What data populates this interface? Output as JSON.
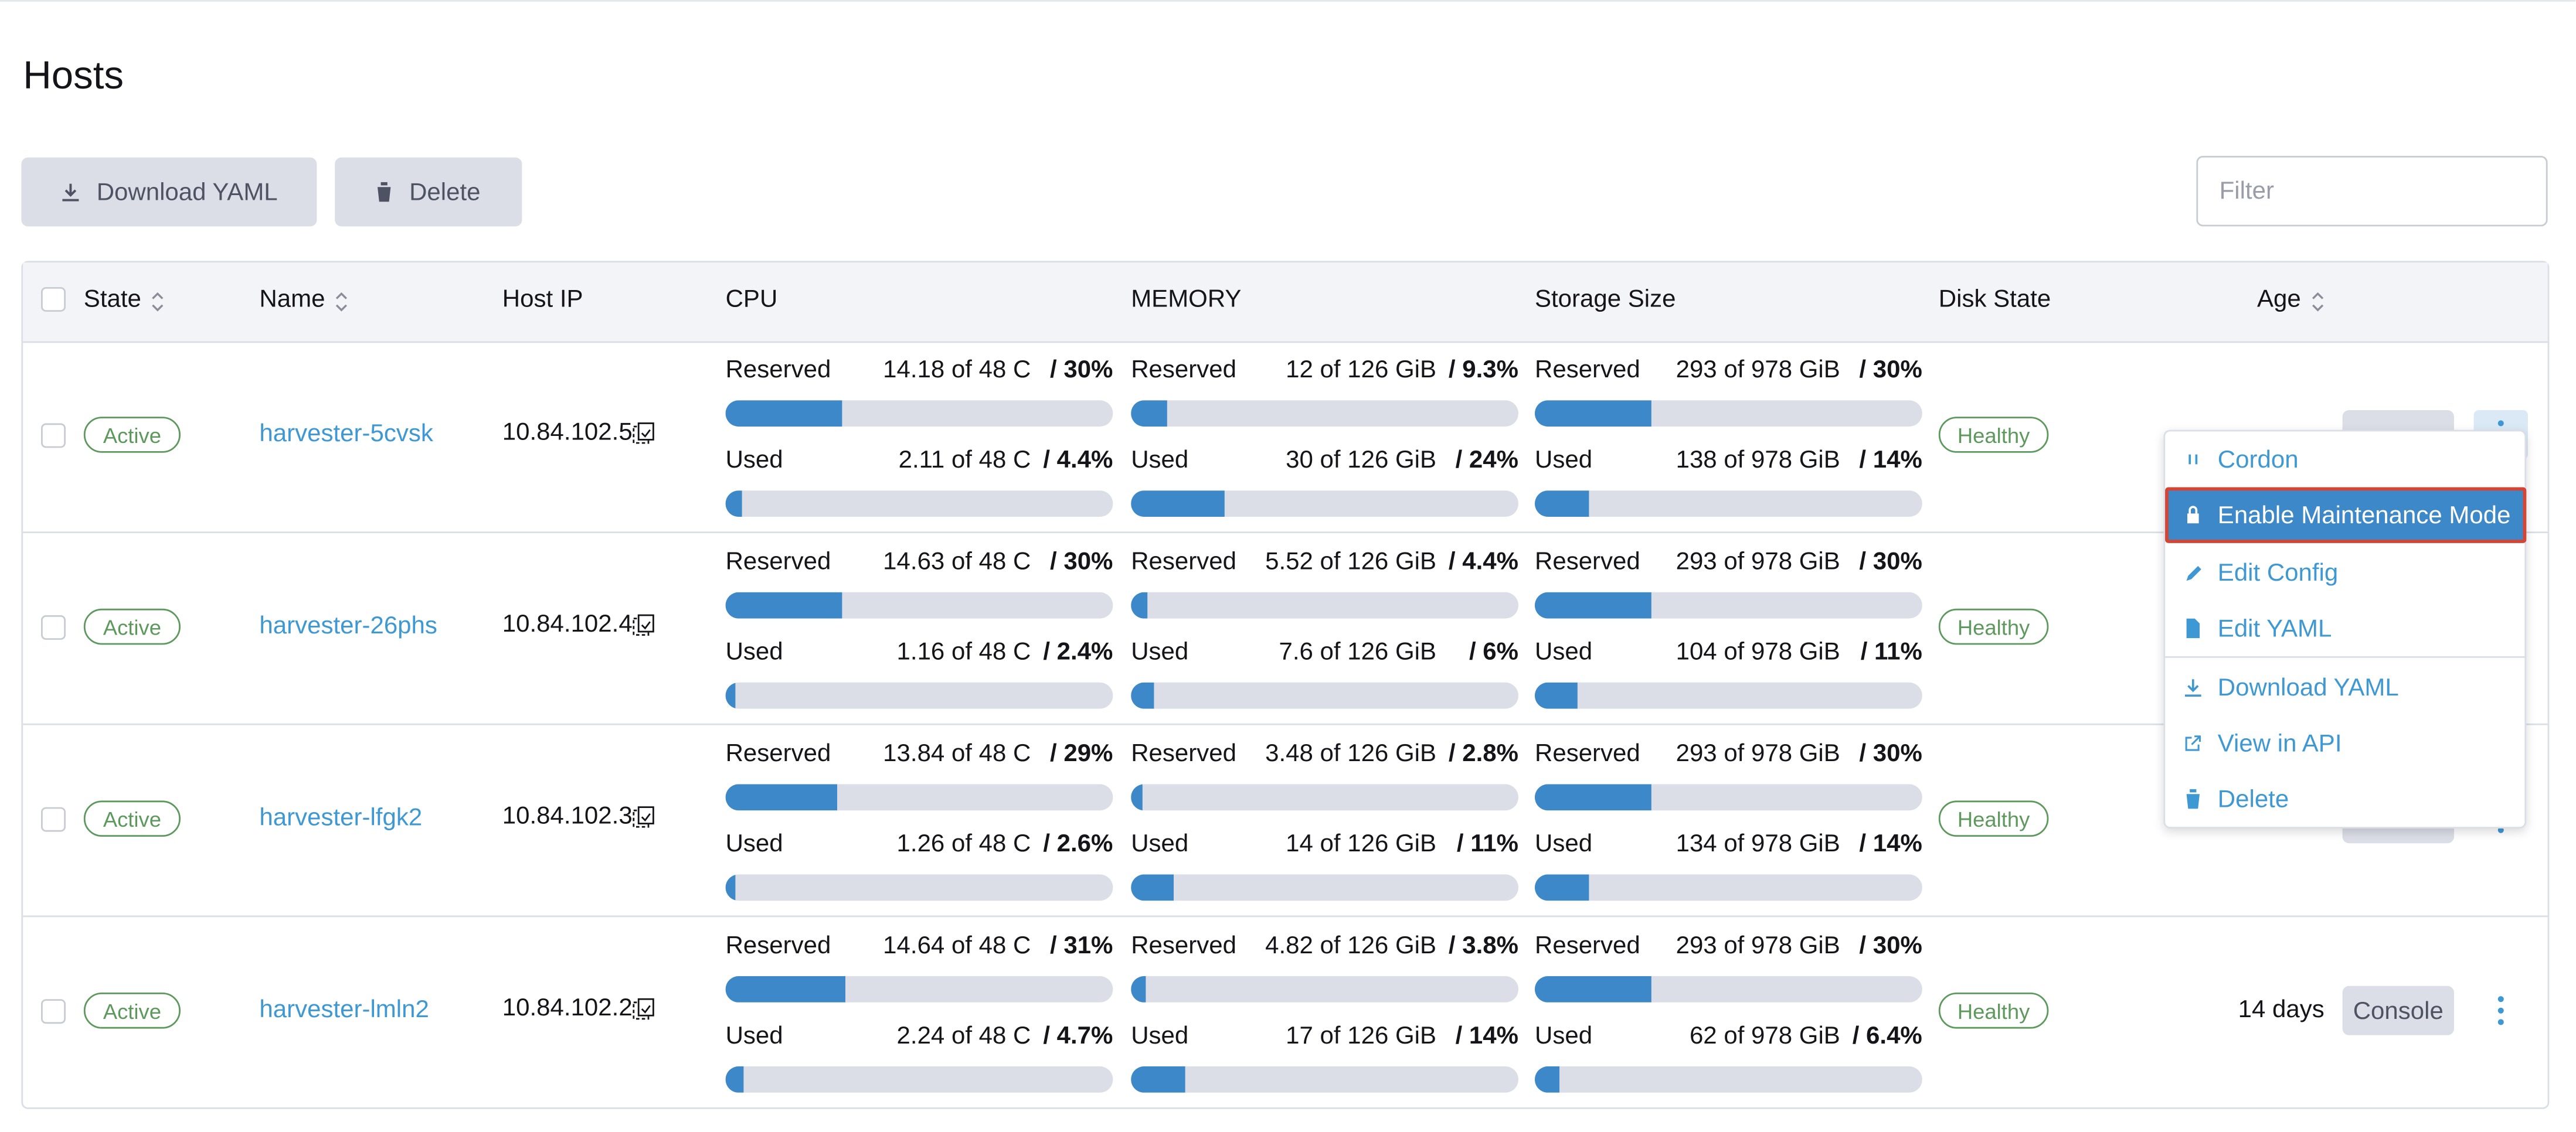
{
  "header": {
    "title": "Hosts"
  },
  "toolbar": {
    "buttons": [
      "Download YAML",
      "Delete"
    ],
    "filter_placeholder": "Filter"
  },
  "table": {
    "columns": [
      "State",
      "Name",
      "Host IP",
      "CPU",
      "MEMORY",
      "Storage Size",
      "Disk State",
      "Age"
    ],
    "rows": [
      {
        "state": "Active",
        "name": "harvester-5cvsk",
        "ip": "10.84.102.5",
        "cpu": {
          "reserved": {
            "label": "Reserved",
            "amount": "14.18 of 48 C",
            "percent": {
              "value": 30,
              "label": "/ 30%"
            }
          },
          "used": {
            "label": "Used",
            "amount": "2.11 of 48 C",
            "percent": {
              "value": 4.4,
              "label": "/ 4.4%"
            }
          }
        },
        "memory": {
          "reserved": {
            "label": "Reserved",
            "amount": "12 of 126 GiB",
            "percent": {
              "value": 9.3,
              "label": "/ 9.3%"
            }
          },
          "used": {
            "label": "Used",
            "amount": "30 of 126 GiB",
            "percent": {
              "value": 24,
              "label": "/ 24%"
            }
          }
        },
        "storage": {
          "reserved": {
            "label": "Reserved",
            "amount": "293 of 978 GiB",
            "percent": {
              "value": 30,
              "label": "/ 30%"
            }
          },
          "used": {
            "label": "Used",
            "amount": "138 of 978 GiB",
            "percent": {
              "value": 14,
              "label": "/ 14%"
            }
          }
        },
        "disk": "Healthy"
      },
      {
        "state": "Active",
        "name": "harvester-26phs",
        "ip": "10.84.102.4",
        "cpu": {
          "reserved": {
            "label": "Reserved",
            "amount": "14.63 of 48 C",
            "percent": {
              "value": 30,
              "label": "/ 30%"
            }
          },
          "used": {
            "label": "Used",
            "amount": "1.16 of 48 C",
            "percent": {
              "value": 2.4,
              "label": "/ 2.4%"
            }
          }
        },
        "memory": {
          "reserved": {
            "label": "Reserved",
            "amount": "5.52 of 126 GiB",
            "percent": {
              "value": 4.4,
              "label": "/ 4.4%"
            }
          },
          "used": {
            "label": "Used",
            "amount": "7.6 of 126 GiB",
            "percent": {
              "value": 6,
              "label": "/ 6%"
            }
          }
        },
        "storage": {
          "reserved": {
            "label": "Reserved",
            "amount": "293 of 978 GiB",
            "percent": {
              "value": 30,
              "label": "/ 30%"
            }
          },
          "used": {
            "label": "Used",
            "amount": "104 of 978 GiB",
            "percent": {
              "value": 11,
              "label": "/ 11%"
            }
          }
        },
        "disk": "Healthy"
      },
      {
        "state": "Active",
        "name": "harvester-lfgk2",
        "ip": "10.84.102.3",
        "cpu": {
          "reserved": {
            "label": "Reserved",
            "amount": "13.84 of 48 C",
            "percent": {
              "value": 29,
              "label": "/ 29%"
            }
          },
          "used": {
            "label": "Used",
            "amount": "1.26 of 48 C",
            "percent": {
              "value": 2.6,
              "label": "/ 2.6%"
            }
          }
        },
        "memory": {
          "reserved": {
            "label": "Reserved",
            "amount": "3.48 of 126 GiB",
            "percent": {
              "value": 2.8,
              "label": "/ 2.8%"
            }
          },
          "used": {
            "label": "Used",
            "amount": "14 of 126 GiB",
            "percent": {
              "value": 11,
              "label": "/ 11%"
            }
          }
        },
        "storage": {
          "reserved": {
            "label": "Reserved",
            "amount": "293 of 978 GiB",
            "percent": {
              "value": 30,
              "label": "/ 30%"
            }
          },
          "used": {
            "label": "Used",
            "amount": "134 of 978 GiB",
            "percent": {
              "value": 14,
              "label": "/ 14%"
            }
          }
        },
        "disk": "Healthy"
      },
      {
        "state": "Active",
        "name": "harvester-lmln2",
        "ip": "10.84.102.2",
        "cpu": {
          "reserved": {
            "label": "Reserved",
            "amount": "14.64 of 48 C",
            "percent": {
              "value": 31,
              "label": "/ 31%"
            }
          },
          "used": {
            "label": "Used",
            "amount": "2.24 of 48 C",
            "percent": {
              "value": 4.7,
              "label": "/ 4.7%"
            }
          }
        },
        "memory": {
          "reserved": {
            "label": "Reserved",
            "amount": "4.82 of 126 GiB",
            "percent": {
              "value": 3.8,
              "label": "/ 3.8%"
            }
          },
          "used": {
            "label": "Used",
            "amount": "17 of 126 GiB",
            "percent": {
              "value": 14,
              "label": "/ 14%"
            }
          }
        },
        "storage": {
          "reserved": {
            "label": "Reserved",
            "amount": "293 of 978 GiB",
            "percent": {
              "value": 30,
              "label": "/ 30%"
            }
          },
          "used": {
            "label": "Used",
            "amount": "62 of 978 GiB",
            "percent": {
              "value": 6.4,
              "label": "/ 6.4%"
            }
          }
        },
        "disk": "Healthy",
        "age": "14 days",
        "action": "Console"
      }
    ]
  },
  "menu": {
    "items": [
      "Cordon",
      "Enable Maintenance Mode",
      "Edit Config",
      "Edit YAML",
      "Download YAML",
      "View in API",
      "Delete"
    ]
  }
}
